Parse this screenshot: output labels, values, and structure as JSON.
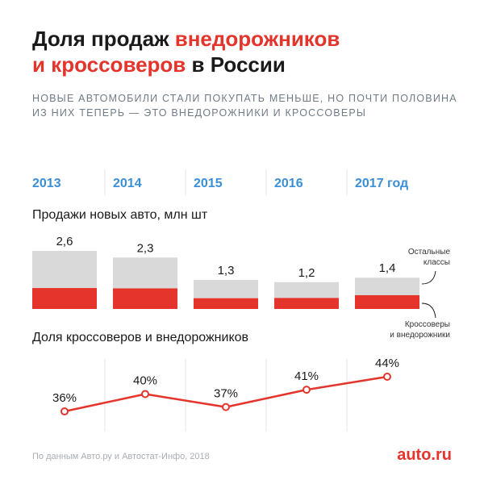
{
  "title": {
    "line1_a": "Доля продаж ",
    "line1_b": "внедорожников",
    "line2_a": "и кроссоверов",
    "line2_b": " в России"
  },
  "subtitle": "Новые автомобили стали покупать меньше, но почти половина из них теперь — это внедорожники и кроссоверы",
  "years": [
    "2013",
    "2014",
    "2015",
    "2016",
    "2017 год"
  ],
  "sales_title": "Продажи новых авто, млн шт",
  "share_title": "Доля кроссоверов и внедорожников",
  "legend": {
    "other_line1": "Остальные",
    "other_line2": "классы",
    "suv_line1": "Кроссоверы",
    "suv_line2": "и внедорожники"
  },
  "source": "По данным Авто.ру и Автостат-Инфо, 2018",
  "logo": "auto.ru",
  "colors": {
    "red": "#e4342b",
    "gray": "#d9d9d9",
    "blue": "#3b8fd6",
    "divider": "#e6e6e6"
  },
  "chart_data": [
    {
      "type": "bar",
      "title": "Продажи новых авто, млн шт",
      "categories": [
        "2013",
        "2014",
        "2015",
        "2016",
        "2017"
      ],
      "values": [
        2.6,
        2.3,
        1.3,
        1.2,
        1.4
      ],
      "labels": [
        "2,6",
        "2,3",
        "1,3",
        "1,2",
        "1,4"
      ],
      "stack_series": [
        "Кроссоверы и внедорожники",
        "Остальные классы"
      ]
    },
    {
      "type": "line",
      "title": "Доля кроссоверов и внедорожников",
      "categories": [
        "2013",
        "2014",
        "2015",
        "2016",
        "2017"
      ],
      "values": [
        36,
        40,
        37,
        41,
        44
      ],
      "labels": [
        "36%",
        "40%",
        "37%",
        "41%",
        "44%"
      ],
      "unit": "%"
    }
  ]
}
